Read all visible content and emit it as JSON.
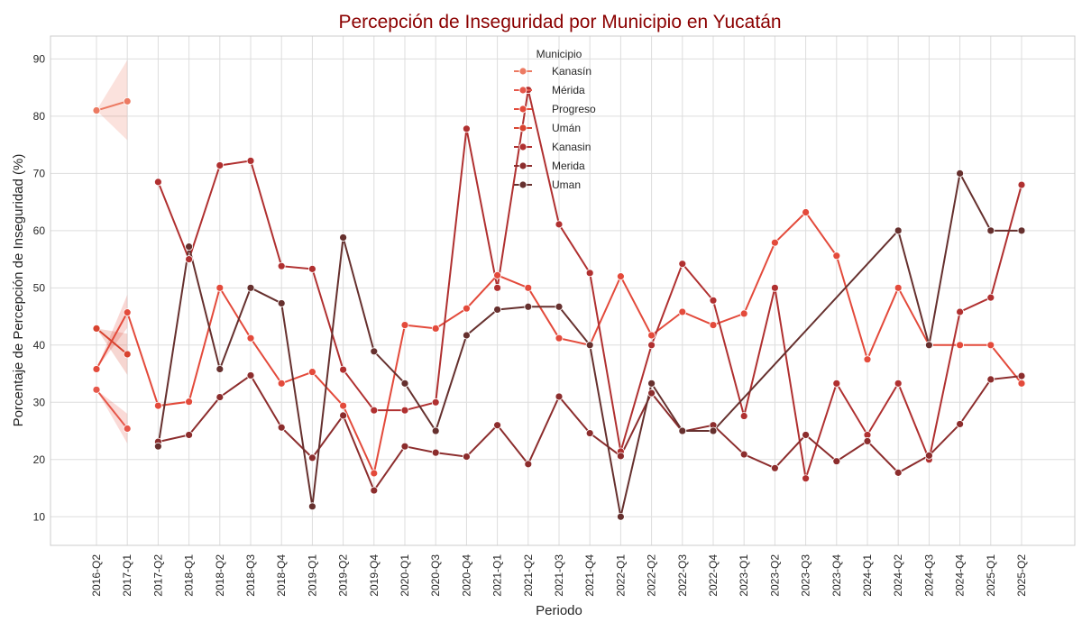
{
  "chart_data": {
    "type": "line",
    "title": "Percepción de Inseguridad por Municipio en Yucatán",
    "xlabel": "Periodo",
    "ylabel": "Porcentaje de Percepción de Inseguridad (%)",
    "ylim": [
      5,
      94
    ],
    "yticks": [
      10,
      20,
      30,
      40,
      50,
      60,
      70,
      80,
      90
    ],
    "grid": true,
    "legend": {
      "title": "Municipio",
      "placement": "top-center"
    },
    "categories": [
      "2016-Q2",
      "2017-Q1",
      "2017-Q2",
      "2018-Q1",
      "2018-Q2",
      "2018-Q3",
      "2018-Q4",
      "2019-Q1",
      "2019-Q2",
      "2019-Q4",
      "2020-Q1",
      "2020-Q3",
      "2020-Q4",
      "2021-Q1",
      "2021-Q2",
      "2021-Q3",
      "2021-Q4",
      "2022-Q1",
      "2022-Q2",
      "2022-Q3",
      "2022-Q4",
      "2023-Q1",
      "2023-Q2",
      "2023-Q3",
      "2023-Q4",
      "2024-Q1",
      "2024-Q2",
      "2024-Q3",
      "2024-Q4",
      "2025-Q1",
      "2025-Q2"
    ],
    "series": [
      {
        "name": "Kanasín",
        "color": "#ec7a62",
        "values": [
          81.0,
          82.6,
          null,
          null,
          null,
          null,
          null,
          null,
          null,
          null,
          null,
          null,
          null,
          null,
          null,
          null,
          null,
          null,
          null,
          null,
          null,
          null,
          null,
          null,
          null,
          null,
          null,
          null,
          null,
          null,
          null
        ],
        "band": {
          "lower": [
            81.0,
            75.8
          ],
          "upper": [
            81.0,
            89.8
          ]
        }
      },
      {
        "name": "Mérida",
        "color": "#e6574a",
        "values": [
          32.2,
          25.4,
          null,
          null,
          null,
          null,
          null,
          null,
          null,
          null,
          null,
          null,
          null,
          null,
          null,
          null,
          null,
          null,
          null,
          null,
          null,
          null,
          null,
          null,
          null,
          null,
          null,
          null,
          null,
          null,
          null
        ],
        "band": {
          "lower": [
            32.2,
            22.8
          ],
          "upper": [
            32.2,
            28.0
          ]
        }
      },
      {
        "name": "Progreso",
        "color": "#e34a3b",
        "values": [
          35.8,
          45.7,
          29.4,
          30.1,
          50.0,
          41.2,
          33.3,
          35.3,
          29.4,
          17.6,
          43.5,
          42.9,
          46.4,
          52.2,
          50.0,
          41.2,
          40.0,
          52.0,
          41.7,
          45.8,
          43.5,
          45.5,
          57.9,
          63.2,
          55.6,
          37.5,
          50.0,
          40.0,
          40.0,
          40.0,
          33.3
        ],
        "band": {
          "lower": [
            35.8,
            43.0
          ],
          "upper": [
            35.8,
            48.8
          ]
        }
      },
      {
        "name": "Umán",
        "color": "#d8432f",
        "values": [
          42.9,
          38.4,
          null,
          null,
          null,
          null,
          null,
          null,
          null,
          null,
          null,
          null,
          null,
          null,
          null,
          null,
          null,
          null,
          null,
          null,
          null,
          null,
          null,
          null,
          null,
          null,
          null,
          null,
          null,
          null,
          null
        ],
        "band": {
          "lower": [
            42.9,
            34.8
          ],
          "upper": [
            42.9,
            42.0
          ]
        }
      },
      {
        "name": "Kanasin",
        "color": "#b03030",
        "values": [
          null,
          null,
          68.5,
          55.0,
          71.4,
          72.2,
          53.8,
          53.3,
          35.7,
          28.6,
          28.6,
          30.0,
          77.8,
          50.0,
          84.6,
          61.1,
          52.6,
          21.4,
          40.0,
          54.2,
          47.8,
          27.6,
          50.0,
          16.7,
          33.3,
          24.3,
          33.3,
          20.0,
          45.8,
          48.3,
          68.0
        ]
      },
      {
        "name": "Merida",
        "color": "#8c2d2d",
        "values": [
          null,
          null,
          23.1,
          24.3,
          30.9,
          34.7,
          25.6,
          20.3,
          27.7,
          14.6,
          22.3,
          21.2,
          20.5,
          26.0,
          19.2,
          31.0,
          24.6,
          20.6,
          31.6,
          24.9,
          26.0,
          20.9,
          18.5,
          24.3,
          19.7,
          23.2,
          17.7,
          20.7,
          26.2,
          34.0,
          34.6
        ]
      },
      {
        "name": "Uman",
        "color": "#66302e",
        "values": [
          null,
          null,
          22.3,
          57.2,
          35.8,
          50.0,
          47.3,
          11.8,
          58.8,
          38.9,
          33.3,
          25.0,
          41.7,
          46.2,
          46.7,
          46.7,
          40.0,
          10.0,
          33.3,
          25.0,
          25.0,
          null,
          null,
          null,
          null,
          null,
          60.0,
          40.0,
          70.0,
          60.0,
          60.0
        ]
      }
    ]
  }
}
